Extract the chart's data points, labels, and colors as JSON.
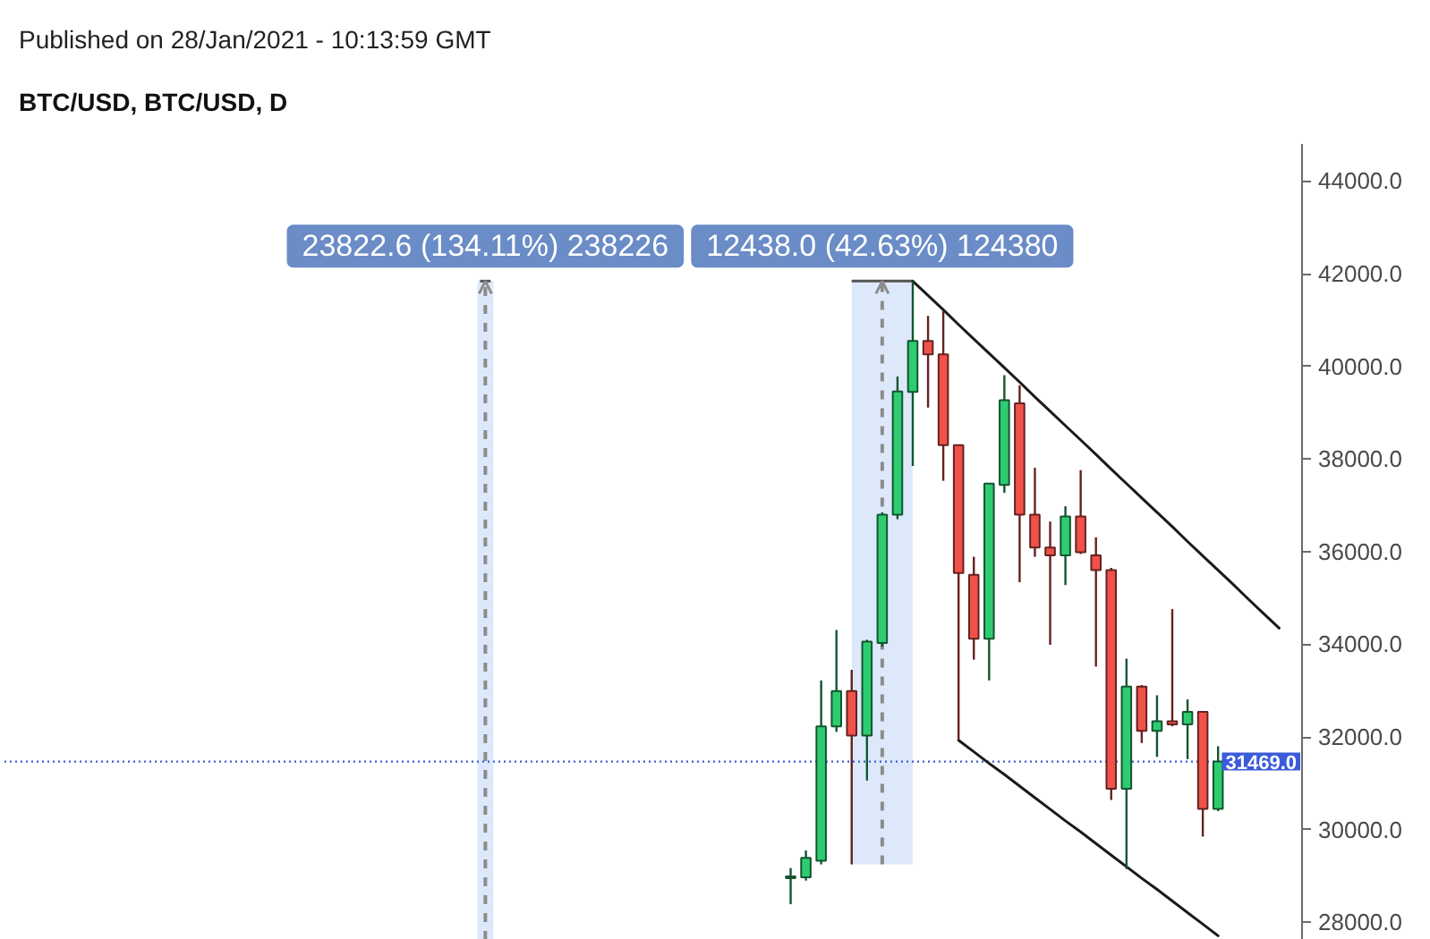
{
  "chart_data": {
    "type": "candlestick",
    "title": "BTC/USD, BTC/USD, D",
    "annotations": [
      "Published on 28/Jan/2021 - 10:13:59 GMT",
      "23822.6 (134.11%) 238226",
      "12438.0 (42.63%) 124380"
    ],
    "categories": [
      null,
      null,
      null,
      null,
      null,
      null,
      null,
      null,
      null,
      null,
      null,
      null,
      null,
      null,
      null,
      null,
      null,
      null,
      null,
      null,
      null,
      null,
      null,
      null,
      null,
      null,
      null,
      null,
      null,
      null,
      null,
      null,
      null,
      null,
      null,
      null,
      null,
      null,
      null,
      null,
      null,
      null,
      null,
      null,
      null,
      null,
      null,
      null,
      null,
      null,
      null,
      null,
      null,
      null,
      null,
      null,
      null,
      null,
      null,
      null,
      null,
      null,
      null,
      null,
      null,
      null,
      null,
      null,
      null,
      null,
      null,
      null,
      null,
      null,
      null,
      null,
      null,
      null,
      null,
      null,
      null,
      null,
      null,
      null,
      null
    ],
    "ohlc": [
      null,
      null,
      null,
      null,
      null,
      null,
      null,
      null,
      null,
      null,
      null,
      null,
      null,
      null,
      null,
      null,
      null,
      null,
      null,
      null,
      null,
      null,
      null,
      null,
      null,
      null,
      null,
      null,
      null,
      null,
      null,
      null,
      null,
      null,
      null,
      null,
      null,
      null,
      null,
      null,
      null,
      null,
      null,
      null,
      null,
      null,
      null,
      null,
      null,
      null,
      null,
      [
        28950,
        29170,
        28390,
        28990
      ],
      [
        28970,
        29550,
        28900,
        29390
      ],
      [
        29330,
        33220,
        29250,
        32230
      ],
      [
        32230,
        34310,
        32110,
        32990
      ],
      [
        32990,
        33450,
        29250,
        32030
      ],
      [
        32030,
        34100,
        31060,
        34060
      ],
      [
        34030,
        36850,
        33950,
        36800
      ],
      [
        36800,
        39780,
        36700,
        39460
      ],
      [
        39450,
        41840,
        37850,
        40550
      ],
      [
        40550,
        41090,
        39110,
        40260
      ],
      [
        40260,
        41200,
        37530,
        38300
      ],
      [
        38300,
        38300,
        31930,
        35540
      ],
      [
        35500,
        35890,
        33670,
        34120
      ],
      [
        34120,
        37470,
        33220,
        37470
      ],
      [
        37440,
        39810,
        37270,
        39270
      ],
      [
        39200,
        39590,
        35340,
        36800
      ],
      [
        36800,
        37810,
        35890,
        36090
      ],
      [
        36090,
        36650,
        33990,
        35920
      ],
      [
        35920,
        36980,
        35280,
        36760
      ],
      [
        36760,
        37760,
        35950,
        35990
      ],
      [
        35920,
        36310,
        33520,
        35600
      ],
      [
        35600,
        35650,
        30640,
        30880
      ],
      [
        30880,
        33690,
        29150,
        33090
      ],
      [
        33090,
        33120,
        31870,
        32130
      ],
      [
        32130,
        32900,
        31570,
        32340
      ],
      [
        32340,
        34760,
        32230,
        32270
      ],
      [
        32270,
        32810,
        31520,
        32540
      ],
      [
        32540,
        32560,
        29850,
        30450
      ],
      [
        30450,
        31800,
        30400,
        31469
      ],
      null,
      null,
      null,
      null,
      null
    ],
    "colors": [
      null,
      null,
      null,
      null,
      null,
      null,
      null,
      null,
      null,
      null,
      null,
      null,
      null,
      null,
      null,
      null,
      null,
      null,
      null,
      null,
      null,
      null,
      null,
      null,
      null,
      null,
      null,
      null,
      null,
      null,
      null,
      null,
      null,
      null,
      null,
      null,
      null,
      null,
      null,
      null,
      null,
      null,
      null,
      null,
      null,
      null,
      null,
      null,
      null,
      null,
      null,
      "#2ecc71",
      "#2ecc71",
      "#2ecc71",
      "#2ecc71",
      "#f0524a",
      "#2ecc71",
      "#2ecc71",
      "#2ecc71",
      "#2ecc71",
      "#f0524a",
      "#f0524a",
      "#f0524a",
      "#f0524a",
      "#2ecc71",
      "#2ecc71",
      "#f0524a",
      "#f0524a",
      "#f0524a",
      "#2ecc71",
      "#f0524a",
      "#f0524a",
      "#f0524a",
      "#2ecc71",
      "#f0524a",
      "#2ecc71",
      "#f0524a",
      "#2ecc71",
      "#f0524a",
      "#2ecc71",
      null,
      null,
      null,
      null,
      null
    ],
    "series": [
      {
        "type": "line",
        "color": "#1a1a1a",
        "values": [
          null,
          null,
          null,
          null,
          null,
          null,
          null,
          null,
          null,
          null,
          null,
          null,
          null,
          null,
          null,
          null,
          null,
          null,
          null,
          null,
          null,
          null,
          null,
          null,
          null,
          null,
          null,
          null,
          null,
          null,
          null,
          null,
          null,
          null,
          null,
          null,
          null,
          null,
          null,
          null,
          null,
          null,
          null,
          null,
          null,
          null,
          null,
          null,
          null,
          null,
          null,
          null,
          null,
          null,
          null,
          null,
          null,
          null,
          null,
          41840,
          41530,
          41220,
          40900,
          40590,
          40280,
          39970,
          39660,
          39340,
          39030,
          38720,
          38410,
          38100,
          37780,
          37470,
          37160,
          36850,
          36540,
          36220,
          35910,
          35600,
          35290,
          34970,
          34660,
          34350,
          null
        ]
      },
      {
        "type": "line",
        "color": "#1a1a1a",
        "values": [
          null,
          null,
          null,
          null,
          null,
          null,
          null,
          null,
          null,
          null,
          null,
          null,
          null,
          null,
          null,
          null,
          null,
          null,
          null,
          null,
          null,
          null,
          null,
          null,
          null,
          null,
          null,
          null,
          null,
          null,
          null,
          null,
          null,
          null,
          null,
          null,
          null,
          null,
          null,
          null,
          null,
          null,
          null,
          null,
          null,
          null,
          null,
          null,
          null,
          null,
          null,
          null,
          null,
          null,
          null,
          null,
          null,
          null,
          null,
          null,
          null,
          null,
          31930,
          31680,
          31430,
          31190,
          30940,
          30690,
          30440,
          30190,
          29950,
          29700,
          29450,
          29200,
          28950,
          28710,
          28460,
          28210,
          27960,
          27710,
          null,
          null,
          null,
          null,
          null
        ]
      }
    ],
    "ylim": [
      27620,
      44800
    ],
    "yticks": [
      {
        "value": 28000,
        "label": "28000.0"
      },
      {
        "value": 30000,
        "label": "30000.0"
      },
      {
        "value": 32000,
        "label": "32000.0"
      },
      {
        "value": 34000,
        "label": "34000.0"
      },
      {
        "value": 36000,
        "label": "36000.0"
      },
      {
        "value": 38000,
        "label": "38000.0"
      },
      {
        "value": 40000,
        "label": "40000.0"
      },
      {
        "value": 42000,
        "label": "42000.0"
      },
      {
        "value": 44000,
        "label": "44000.0"
      }
    ],
    "ref_lines": [
      {
        "axis": "y",
        "value": 31469,
        "label": "31469.0",
        "color": "#3b5bdb",
        "line_style": "dotted"
      }
    ],
    "tick_labels": "y"
  }
}
